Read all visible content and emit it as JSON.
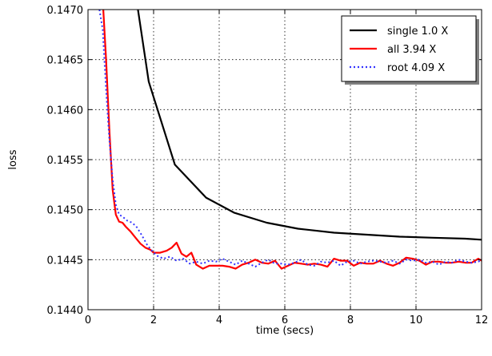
{
  "chart_data": {
    "type": "line",
    "title": "",
    "xlabel": "time (secs)",
    "ylabel": "loss",
    "xlim": [
      0,
      12
    ],
    "ylim": [
      0.144,
      0.147
    ],
    "grid": true,
    "grid_style": "dotted",
    "legend_position": "top-right",
    "x_ticks": [
      "0",
      "2",
      "4",
      "6",
      "8",
      "10",
      "12"
    ],
    "y_ticks": [
      "0.1440",
      "0.1445",
      "0.1450",
      "0.1455",
      "0.1460",
      "0.1465",
      "0.1470"
    ],
    "series": [
      {
        "name": "single 1.0 X",
        "color": "#000000",
        "style": "solid",
        "x": [
          1.5,
          1.85,
          2.65,
          3.6,
          4.45,
          5.45,
          6.4,
          7.5,
          8.5,
          9.5,
          10.5,
          11.5,
          12.0
        ],
        "y": [
          0.14705,
          0.14628,
          0.14545,
          0.14512,
          0.14497,
          0.14487,
          0.14481,
          0.14477,
          0.14475,
          0.14473,
          0.14472,
          0.14471,
          0.1447
        ]
      },
      {
        "name": "all 3.94 X",
        "color": "#ff0000",
        "style": "solid",
        "x": [
          0.45,
          0.55,
          0.65,
          0.75,
          0.85,
          0.95,
          1.05,
          1.15,
          1.3,
          1.45,
          1.6,
          1.75,
          1.9,
          2.0,
          2.2,
          2.4,
          2.55,
          2.7,
          2.85,
          3.0,
          3.15,
          3.3,
          3.5,
          3.7,
          3.9,
          4.1,
          4.3,
          4.5,
          4.7,
          4.9,
          5.1,
          5.3,
          5.5,
          5.7,
          5.9,
          6.1,
          6.3,
          6.5,
          6.7,
          6.9,
          7.1,
          7.3,
          7.5,
          7.7,
          7.9,
          8.1,
          8.3,
          8.5,
          8.7,
          8.9,
          9.1,
          9.3,
          9.5,
          9.7,
          9.9,
          10.1,
          10.3,
          10.5,
          10.7,
          10.9,
          11.1,
          11.3,
          11.5,
          11.7,
          11.9,
          12.0
        ],
        "y": [
          0.1471,
          0.1465,
          0.1458,
          0.1452,
          0.14495,
          0.14488,
          0.14487,
          0.14483,
          0.14478,
          0.14472,
          0.14466,
          0.14462,
          0.1446,
          0.14457,
          0.14457,
          0.14459,
          0.14462,
          0.14467,
          0.14456,
          0.14453,
          0.14457,
          0.14445,
          0.14441,
          0.14444,
          0.14444,
          0.14444,
          0.14443,
          0.14441,
          0.14445,
          0.14447,
          0.1445,
          0.14447,
          0.14446,
          0.14449,
          0.14441,
          0.14444,
          0.14447,
          0.14446,
          0.14445,
          0.14446,
          0.14445,
          0.14443,
          0.14451,
          0.14449,
          0.14449,
          0.14444,
          0.14447,
          0.14446,
          0.14446,
          0.14449,
          0.14446,
          0.14444,
          0.14447,
          0.14452,
          0.14451,
          0.14449,
          0.14445,
          0.14448,
          0.14448,
          0.14447,
          0.14447,
          0.14448,
          0.14447,
          0.14447,
          0.14451,
          0.14449
        ]
      },
      {
        "name": "root 4.09 X",
        "color": "#3333ff",
        "style": "dotted",
        "x": [
          0.35,
          0.45,
          0.55,
          0.65,
          0.75,
          0.85,
          0.95,
          1.05,
          1.2,
          1.35,
          1.5,
          1.65,
          1.8,
          1.95,
          2.1,
          2.3,
          2.5,
          2.7,
          2.9,
          3.1,
          3.3,
          3.5,
          3.7,
          3.9,
          4.1,
          4.3,
          4.5,
          4.7,
          4.9,
          5.1,
          5.3,
          5.5,
          5.7,
          5.9,
          6.1,
          6.3,
          6.5,
          6.7,
          6.9,
          7.1,
          7.3,
          7.5,
          7.7,
          7.9,
          8.1,
          8.3,
          8.5,
          8.7,
          8.9,
          9.1,
          9.3,
          9.5,
          9.7,
          9.9,
          10.1,
          10.3,
          10.5,
          10.7,
          10.9,
          11.1,
          11.3,
          11.5,
          11.7,
          11.9,
          12.0
        ],
        "y": [
          0.147,
          0.1468,
          0.1462,
          0.1457,
          0.1453,
          0.14505,
          0.14495,
          0.14493,
          0.14489,
          0.14487,
          0.14482,
          0.14474,
          0.14465,
          0.14459,
          0.14454,
          0.14451,
          0.14453,
          0.14449,
          0.14451,
          0.14446,
          0.14448,
          0.14446,
          0.14449,
          0.14448,
          0.14451,
          0.14448,
          0.14445,
          0.14449,
          0.14446,
          0.14443,
          0.14447,
          0.1445,
          0.14446,
          0.14446,
          0.14445,
          0.14447,
          0.1445,
          0.14445,
          0.14444,
          0.14448,
          0.14447,
          0.14449,
          0.14444,
          0.14448,
          0.14449,
          0.14446,
          0.14448,
          0.14449,
          0.14448,
          0.14447,
          0.14449,
          0.14446,
          0.1445,
          0.14449,
          0.1445,
          0.14447,
          0.14448,
          0.14445,
          0.14448,
          0.14447,
          0.1445,
          0.14448,
          0.14447,
          0.14448,
          0.1445
        ]
      }
    ]
  }
}
